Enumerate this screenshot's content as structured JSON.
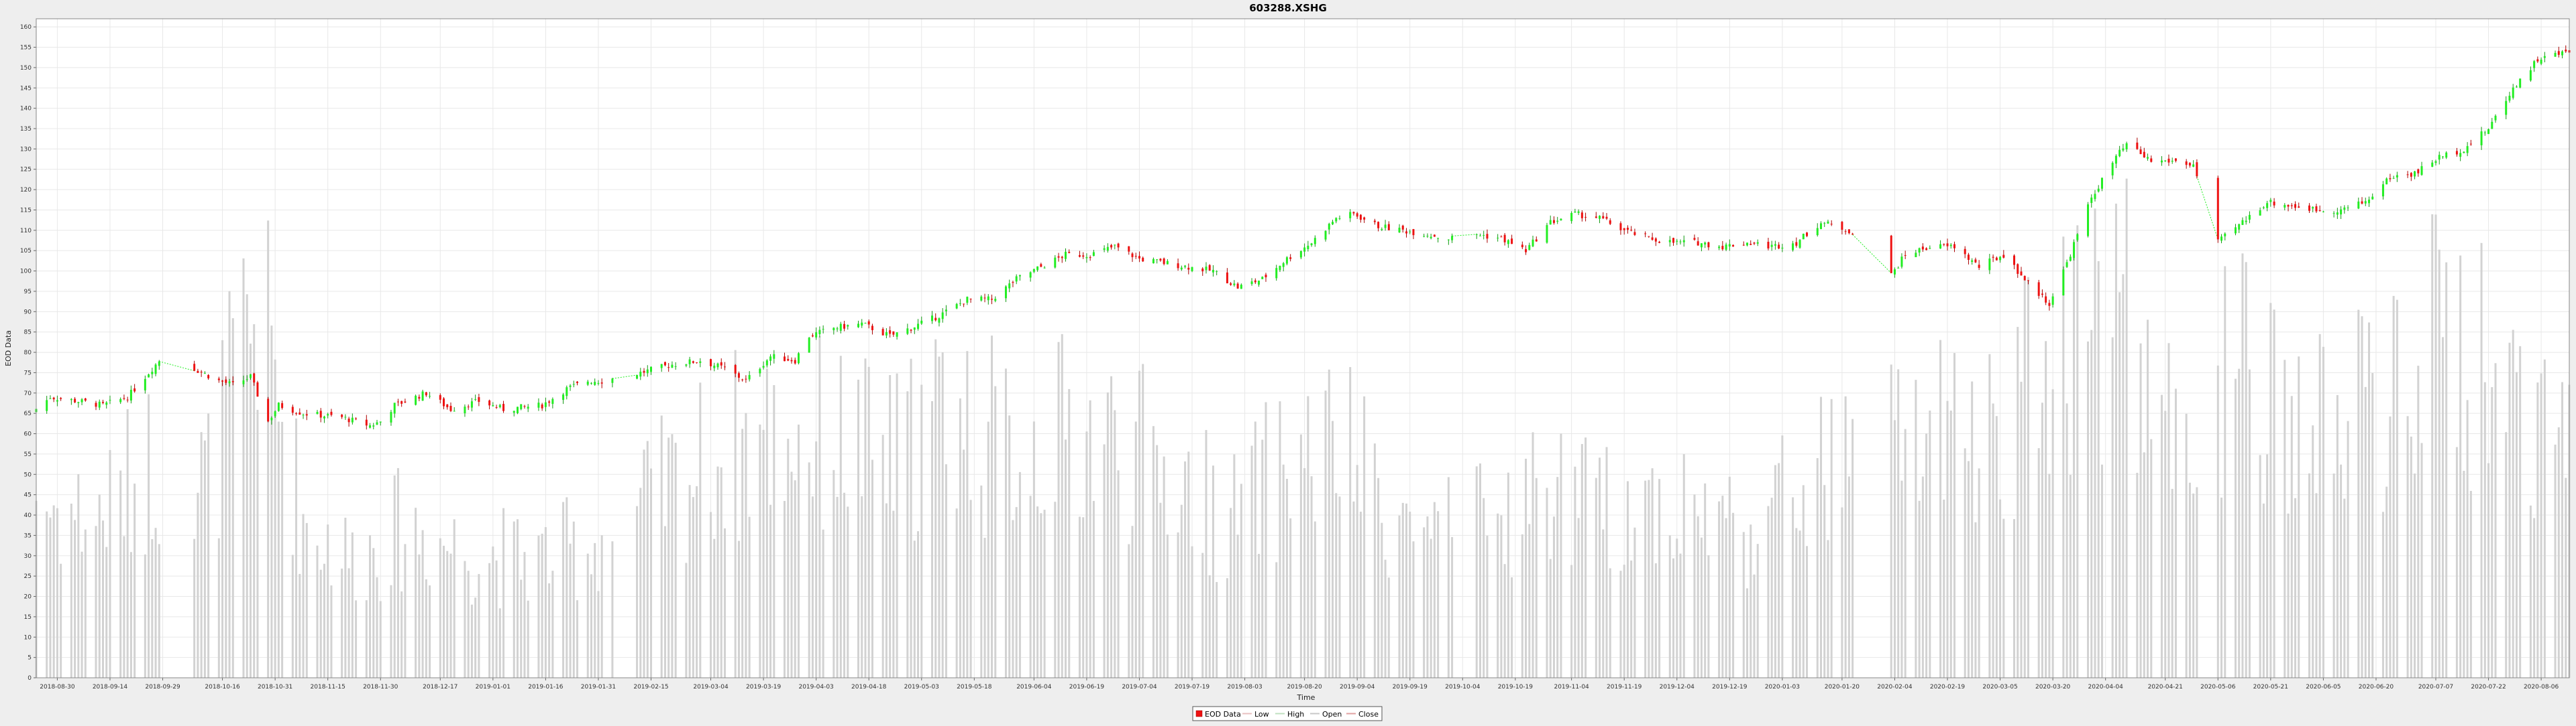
{
  "chart_data": {
    "type": "candlestick",
    "title": "603288.XSHG",
    "xlabel": "Time",
    "ylabel": "EOD Data",
    "ylim": [
      0,
      162
    ],
    "y_ticks": [
      0,
      5,
      10,
      15,
      20,
      25,
      30,
      35,
      40,
      45,
      50,
      55,
      60,
      65,
      70,
      75,
      80,
      85,
      90,
      95,
      100,
      105,
      110,
      115,
      120,
      125,
      130,
      135,
      140,
      145,
      150,
      155,
      160
    ],
    "x_range": [
      "2018-08-24",
      "2020-08-14"
    ],
    "x_ticks": [
      "2018-08-30",
      "2018-09-14",
      "2018-09-29",
      "2018-10-16",
      "2018-10-31",
      "2018-11-15",
      "2018-11-30",
      "2018-12-17",
      "2019-01-01",
      "2019-01-16",
      "2019-01-31",
      "2019-02-15",
      "2019-03-04",
      "2019-03-19",
      "2019-04-03",
      "2019-04-18",
      "2019-05-03",
      "2019-05-18",
      "2019-06-04",
      "2019-06-19",
      "2019-07-04",
      "2019-07-19",
      "2019-08-03",
      "2019-08-20",
      "2019-09-04",
      "2019-09-19",
      "2019-10-04",
      "2019-10-19",
      "2019-11-04",
      "2019-11-19",
      "2019-12-04",
      "2019-12-19",
      "2020-01-03",
      "2020-01-20",
      "2020-02-04",
      "2020-02-19",
      "2020-03-05",
      "2020-03-20",
      "2020-04-04",
      "2020-04-21",
      "2020-05-06",
      "2020-05-21",
      "2020-06-05",
      "2020-06-20",
      "2020-07-07",
      "2020-07-22",
      "2020-08-06"
    ],
    "grid": true,
    "legend_position": "bottom-center",
    "legend": [
      "EOD Data",
      "Low",
      "High",
      "Open",
      "Close"
    ],
    "colors": {
      "up": "#22ee22",
      "down": "#ee1111",
      "volume": "#d2d2d2",
      "background": "#ffffff",
      "page": "#eeeeee",
      "grid": "#e8e8e8",
      "legend_low": "#e8c0c0",
      "legend_high": "#c0e0c0",
      "legend_open": "#c8c8c8",
      "legend_close": "#e0a0a0"
    },
    "gaps": [
      [
        "2018-09-28",
        "2018-10-08"
      ],
      [
        "2019-02-04",
        "2019-02-11"
      ],
      [
        "2019-10-01",
        "2019-10-08"
      ],
      [
        "2020-01-23",
        "2020-02-03"
      ],
      [
        "2020-04-30",
        "2020-05-06"
      ]
    ],
    "close_anchors": [
      [
        "2018-08-24",
        66
      ],
      [
        "2018-08-28",
        69
      ],
      [
        "2018-09-05",
        68
      ],
      [
        "2018-09-12",
        67
      ],
      [
        "2018-09-19",
        69
      ],
      [
        "2018-09-26",
        76
      ],
      [
        "2018-09-28",
        78
      ],
      [
        "2018-10-08",
        76
      ],
      [
        "2018-10-15",
        73
      ],
      [
        "2018-10-19",
        72
      ],
      [
        "2018-10-24",
        74
      ],
      [
        "2018-10-29",
        63
      ],
      [
        "2018-11-01",
        67
      ],
      [
        "2018-11-08",
        65
      ],
      [
        "2018-11-19",
        64
      ],
      [
        "2018-11-27",
        62
      ],
      [
        "2018-11-30",
        63
      ],
      [
        "2018-12-04",
        67
      ],
      [
        "2018-12-13",
        70
      ],
      [
        "2018-12-20",
        66
      ],
      [
        "2018-12-28",
        68
      ],
      [
        "2019-01-04",
        66
      ],
      [
        "2019-01-15",
        67
      ],
      [
        "2019-01-22",
        71
      ],
      [
        "2019-01-28",
        73
      ],
      [
        "2019-02-01",
        73
      ],
      [
        "2019-02-12",
        75
      ],
      [
        "2019-02-21",
        77
      ],
      [
        "2019-03-01",
        78
      ],
      [
        "2019-03-08",
        76
      ],
      [
        "2019-03-14",
        73
      ],
      [
        "2019-03-21",
        79
      ],
      [
        "2019-03-28",
        78
      ],
      [
        "2019-04-01",
        84
      ],
      [
        "2019-04-08",
        86
      ],
      [
        "2019-04-16",
        87
      ],
      [
        "2019-04-24",
        84
      ],
      [
        "2019-04-30",
        86
      ],
      [
        "2019-05-08",
        89
      ],
      [
        "2019-05-16",
        93
      ],
      [
        "2019-05-23",
        93
      ],
      [
        "2019-05-30",
        98
      ],
      [
        "2019-06-06",
        101
      ],
      [
        "2019-06-13",
        104
      ],
      [
        "2019-06-20",
        104
      ],
      [
        "2019-06-27",
        106
      ],
      [
        "2019-07-04",
        103
      ],
      [
        "2019-07-11",
        102
      ],
      [
        "2019-07-18",
        101
      ],
      [
        "2019-07-25",
        100
      ],
      [
        "2019-08-01",
        96
      ],
      [
        "2019-08-08",
        98
      ],
      [
        "2019-08-15",
        103
      ],
      [
        "2019-08-22",
        107
      ],
      [
        "2019-08-29",
        113
      ],
      [
        "2019-09-03",
        114
      ],
      [
        "2019-09-10",
        111
      ],
      [
        "2019-09-17",
        110
      ],
      [
        "2019-09-24",
        109
      ],
      [
        "2019-09-30",
        108
      ],
      [
        "2019-10-08",
        109
      ],
      [
        "2019-10-15",
        108
      ],
      [
        "2019-10-22",
        105
      ],
      [
        "2019-10-29",
        112
      ],
      [
        "2019-11-05",
        114
      ],
      [
        "2019-11-12",
        113
      ],
      [
        "2019-11-19",
        110
      ],
      [
        "2019-11-26",
        108
      ],
      [
        "2019-12-03",
        107
      ],
      [
        "2019-12-10",
        107
      ],
      [
        "2019-12-17",
        106
      ],
      [
        "2019-12-24",
        107
      ],
      [
        "2019-12-31",
        106
      ],
      [
        "2020-01-07",
        107
      ],
      [
        "2020-01-14",
        112
      ],
      [
        "2020-01-22",
        110
      ],
      [
        "2020-02-03",
        99
      ],
      [
        "2020-02-07",
        104
      ],
      [
        "2020-02-14",
        106
      ],
      [
        "2020-02-21",
        106
      ],
      [
        "2020-02-28",
        101
      ],
      [
        "2020-03-06",
        104
      ],
      [
        "2020-03-13",
        97
      ],
      [
        "2020-03-19",
        92
      ],
      [
        "2020-03-24",
        102
      ],
      [
        "2020-03-31",
        118
      ],
      [
        "2020-04-07",
        128
      ],
      [
        "2020-04-10",
        131
      ],
      [
        "2020-04-17",
        127
      ],
      [
        "2020-04-24",
        127
      ],
      [
        "2020-04-29",
        126
      ],
      [
        "2020-05-06",
        107
      ],
      [
        "2020-05-13",
        112
      ],
      [
        "2020-05-20",
        117
      ],
      [
        "2020-05-27",
        116
      ],
      [
        "2020-06-03",
        115
      ],
      [
        "2020-06-10",
        115
      ],
      [
        "2020-06-17",
        117
      ],
      [
        "2020-06-24",
        123
      ],
      [
        "2020-07-01",
        124
      ],
      [
        "2020-07-08",
        128
      ],
      [
        "2020-07-15",
        130
      ],
      [
        "2020-07-22",
        135
      ],
      [
        "2020-07-29",
        145
      ],
      [
        "2020-08-05",
        152
      ],
      [
        "2020-08-14",
        154
      ]
    ],
    "volume_anchors": [
      [
        "2018-08-24",
        45
      ],
      [
        "2018-09-10",
        40
      ],
      [
        "2018-09-26",
        55
      ],
      [
        "2018-10-12",
        50
      ],
      [
        "2018-10-26",
        95
      ],
      [
        "2018-11-08",
        40
      ],
      [
        "2018-11-22",
        30
      ],
      [
        "2018-12-07",
        38
      ],
      [
        "2018-12-25",
        32
      ],
      [
        "2019-01-10",
        30
      ],
      [
        "2019-01-28",
        33
      ],
      [
        "2019-02-20",
        48
      ],
      [
        "2019-03-08",
        58
      ],
      [
        "2019-03-25",
        62
      ],
      [
        "2019-04-10",
        60
      ],
      [
        "2019-04-25",
        55
      ],
      [
        "2019-05-10",
        68
      ],
      [
        "2019-05-28",
        58
      ],
      [
        "2019-06-14",
        62
      ],
      [
        "2019-06-28",
        60
      ],
      [
        "2019-07-15",
        50
      ],
      [
        "2019-07-30",
        40
      ],
      [
        "2019-08-16",
        55
      ],
      [
        "2019-08-30",
        58
      ],
      [
        "2019-09-16",
        40
      ],
      [
        "2019-09-27",
        35
      ],
      [
        "2019-10-15",
        40
      ],
      [
        "2019-10-28",
        48
      ],
      [
        "2019-11-12",
        42
      ],
      [
        "2019-11-26",
        45
      ],
      [
        "2019-12-10",
        42
      ],
      [
        "2019-12-24",
        38
      ],
      [
        "2020-01-08",
        48
      ],
      [
        "2020-01-22",
        55
      ],
      [
        "2020-02-10",
        62
      ],
      [
        "2020-02-24",
        58
      ],
      [
        "2020-03-10",
        70
      ],
      [
        "2020-03-24",
        90
      ],
      [
        "2020-04-08",
        95
      ],
      [
        "2020-04-22",
        62
      ],
      [
        "2020-05-12",
        78
      ],
      [
        "2020-05-26",
        62
      ],
      [
        "2020-06-10",
        65
      ],
      [
        "2020-06-24",
        70
      ],
      [
        "2020-07-08",
        85
      ],
      [
        "2020-07-22",
        78
      ],
      [
        "2020-08-05",
        70
      ],
      [
        "2020-08-14",
        55
      ]
    ]
  }
}
